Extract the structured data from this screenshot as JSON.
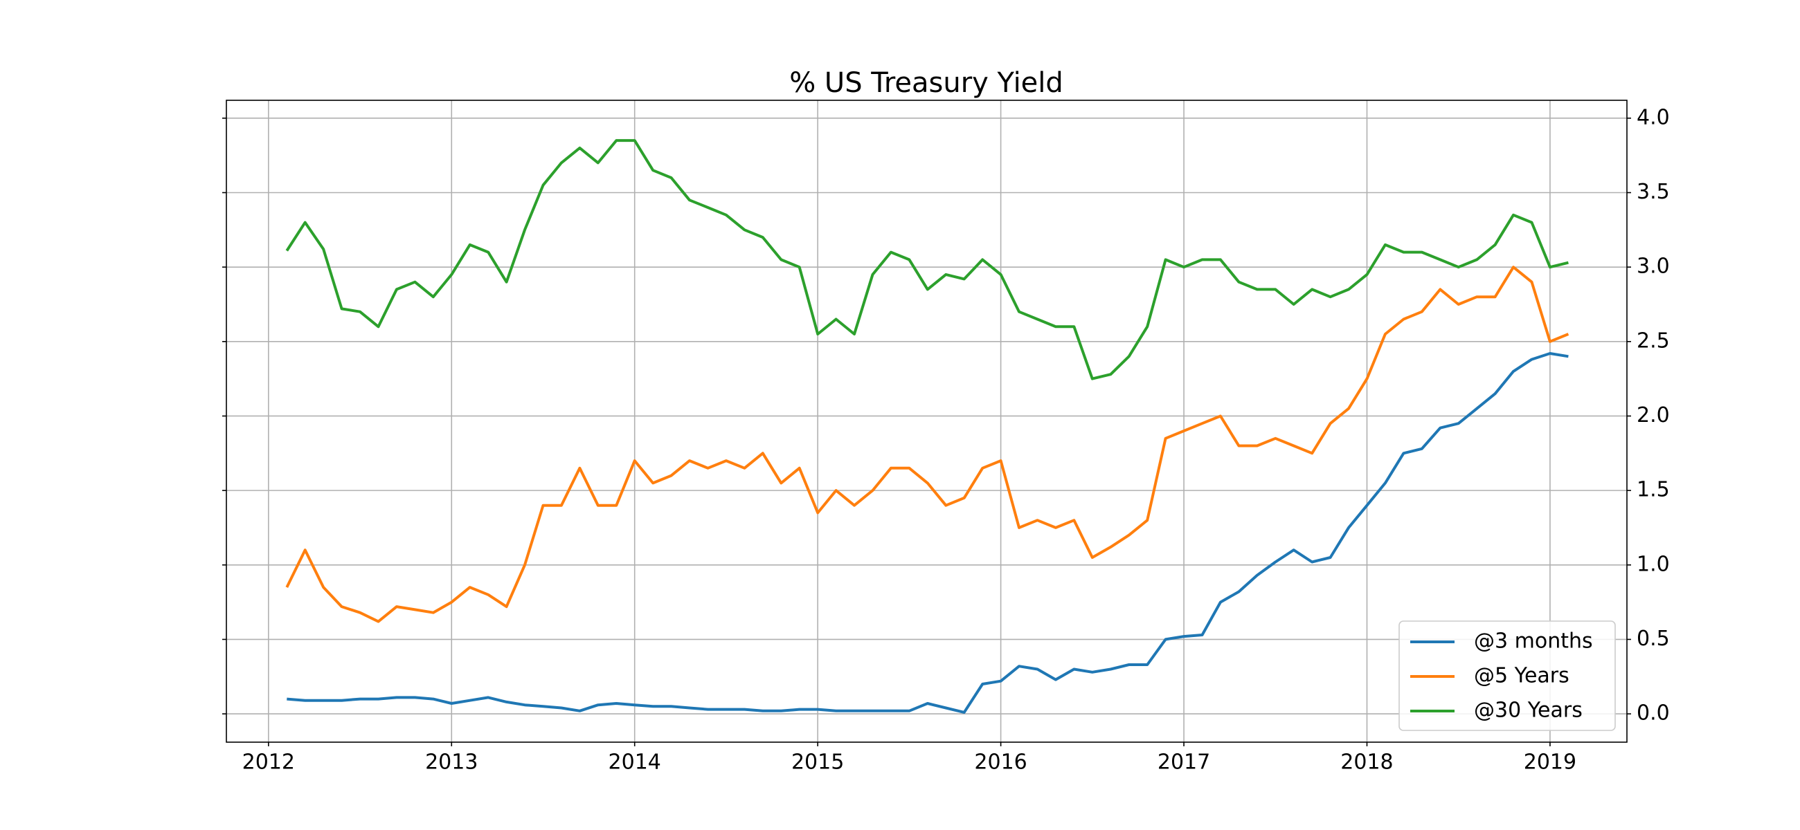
{
  "chart_data": {
    "type": "line",
    "title": "% US Treasury Yield",
    "x": [
      2012.1,
      2012.2,
      2012.3,
      2012.4,
      2012.5,
      2012.6,
      2012.7,
      2012.8,
      2012.9,
      2013.0,
      2013.1,
      2013.2,
      2013.3,
      2013.4,
      2013.5,
      2013.6,
      2013.7,
      2013.8,
      2013.9,
      2014.0,
      2014.1,
      2014.2,
      2014.3,
      2014.4,
      2014.5,
      2014.6,
      2014.7,
      2014.8,
      2014.9,
      2015.0,
      2015.1,
      2015.2,
      2015.3,
      2015.4,
      2015.5,
      2015.6,
      2015.7,
      2015.8,
      2015.9,
      2016.0,
      2016.1,
      2016.2,
      2016.3,
      2016.4,
      2016.5,
      2016.6,
      2016.7,
      2016.8,
      2016.9,
      2017.0,
      2017.1,
      2017.2,
      2017.3,
      2017.4,
      2017.5,
      2017.6,
      2017.7,
      2017.8,
      2017.9,
      2018.0,
      2018.1,
      2018.2,
      2018.3,
      2018.4,
      2018.5,
      2018.6,
      2018.7,
      2018.8,
      2018.9,
      2019.0,
      2019.1
    ],
    "series": [
      {
        "name": "@3 months",
        "color": "#1f77b4",
        "values": [
          0.1,
          0.09,
          0.09,
          0.09,
          0.1,
          0.1,
          0.11,
          0.11,
          0.1,
          0.07,
          0.09,
          0.11,
          0.08,
          0.06,
          0.05,
          0.04,
          0.02,
          0.06,
          0.07,
          0.06,
          0.05,
          0.05,
          0.04,
          0.03,
          0.03,
          0.03,
          0.02,
          0.02,
          0.03,
          0.03,
          0.02,
          0.02,
          0.02,
          0.02,
          0.02,
          0.07,
          0.04,
          0.01,
          0.2,
          0.22,
          0.32,
          0.3,
          0.23,
          0.3,
          0.28,
          0.3,
          0.33,
          0.33,
          0.5,
          0.52,
          0.53,
          0.75,
          0.82,
          0.93,
          1.02,
          1.1,
          1.02,
          1.05,
          1.25,
          1.4,
          1.55,
          1.75,
          1.78,
          1.92,
          1.95,
          2.05,
          2.15,
          2.3,
          2.38,
          2.42,
          2.4
        ]
      },
      {
        "name": "@5 Years",
        "color": "#ff7f0e",
        "values": [
          0.85,
          1.1,
          0.85,
          0.72,
          0.68,
          0.62,
          0.72,
          0.7,
          0.68,
          0.75,
          0.85,
          0.8,
          0.72,
          1.0,
          1.4,
          1.4,
          1.65,
          1.4,
          1.4,
          1.7,
          1.55,
          1.6,
          1.7,
          1.65,
          1.7,
          1.65,
          1.75,
          1.55,
          1.65,
          1.35,
          1.5,
          1.4,
          1.5,
          1.65,
          1.65,
          1.55,
          1.4,
          1.45,
          1.65,
          1.7,
          1.25,
          1.3,
          1.25,
          1.3,
          1.05,
          1.12,
          1.2,
          1.3,
          1.85,
          1.9,
          1.95,
          2.0,
          1.8,
          1.8,
          1.85,
          1.8,
          1.75,
          1.95,
          2.05,
          2.25,
          2.55,
          2.65,
          2.7,
          2.85,
          2.75,
          2.8,
          2.8,
          3.0,
          2.9,
          2.5,
          2.55
        ]
      },
      {
        "name": "@30 Years",
        "color": "#2ca02c",
        "values": [
          3.11,
          3.3,
          3.12,
          2.72,
          2.7,
          2.6,
          2.85,
          2.9,
          2.8,
          2.95,
          3.15,
          3.1,
          2.9,
          3.25,
          3.55,
          3.7,
          3.8,
          3.7,
          3.85,
          3.85,
          3.65,
          3.6,
          3.45,
          3.4,
          3.35,
          3.25,
          3.2,
          3.05,
          3.0,
          2.55,
          2.65,
          2.55,
          2.95,
          3.1,
          3.05,
          2.85,
          2.95,
          2.92,
          3.05,
          2.95,
          2.7,
          2.65,
          2.6,
          2.6,
          2.25,
          2.28,
          2.4,
          2.6,
          3.05,
          3.0,
          3.05,
          3.05,
          2.9,
          2.85,
          2.85,
          2.75,
          2.85,
          2.8,
          2.85,
          2.95,
          3.15,
          3.1,
          3.1,
          3.05,
          3.0,
          3.05,
          3.15,
          3.35,
          3.3,
          3.0,
          3.03
        ]
      }
    ],
    "xlim": [
      2011.77,
      2019.42
    ],
    "xticks": [
      2012,
      2013,
      2014,
      2015,
      2016,
      2017,
      2018,
      2019
    ],
    "ylim": [
      -0.19,
      4.12
    ],
    "yticks": [
      {
        "value": 0,
        "label": "0.0"
      },
      0.5,
      {
        "value": 1,
        "label": "1.0"
      },
      1.5,
      {
        "value": 2,
        "label": "2.0"
      },
      2.5,
      {
        "value": 3,
        "label": "3.0"
      },
      3.5,
      {
        "value": 4,
        "label": "4.0"
      }
    ],
    "y_axis_side": "right",
    "grid": true,
    "legend_position": "lower right"
  }
}
